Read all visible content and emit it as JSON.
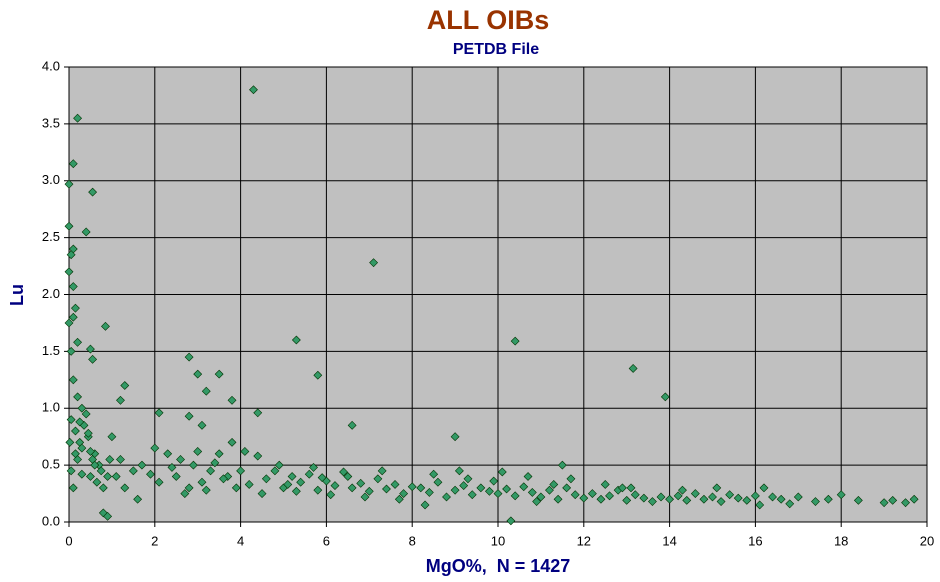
{
  "chart_data": {
    "type": "scatter",
    "title": "ALL OIBs",
    "subtitle": "PETDB File",
    "x_label": "MgO%,  N = 1427",
    "y_label": "Lu",
    "color": "#339966",
    "grid": true,
    "xlim": [
      0,
      20
    ],
    "ylim": [
      0,
      4
    ],
    "xticks": [
      0,
      2,
      4,
      6,
      8,
      10,
      12,
      14,
      16,
      18,
      20
    ],
    "yticks": [
      {
        "value": 0,
        "label": "0.0"
      },
      0.5,
      {
        "value": 1,
        "label": "1.0"
      },
      1.5,
      {
        "value": 2,
        "label": "2.0"
      },
      2.5,
      {
        "value": 3,
        "label": "3.0"
      },
      3.5,
      {
        "value": 4,
        "label": "4.0"
      }
    ],
    "x": [
      4.3,
      0.2,
      0.1,
      0,
      0.55,
      0,
      0.4,
      0.1,
      0.05,
      0,
      7.1,
      0.1,
      0.15,
      0.1,
      0,
      0.85,
      5.3,
      10.4,
      0.2,
      0.5,
      0.05,
      0.55,
      2.8,
      13.15,
      5.8,
      3.0,
      3.5,
      1.3,
      3.2,
      13.9,
      3.8,
      1.2,
      0.1,
      0.2,
      0.3,
      4.4,
      2.1,
      2.8,
      6.6,
      9.0,
      3.1,
      0.8,
      0.9,
      10.3,
      0.05,
      0.15,
      0.25,
      0.35,
      0.45,
      0.6,
      0.7,
      0.05,
      0.2,
      0.3,
      0.5,
      0.65,
      0.1,
      0.4,
      0.55,
      0.75,
      1.0,
      1.1,
      1.3,
      1.5,
      1.7,
      1.9,
      2.1,
      2.3,
      2.5,
      2.7,
      2.9,
      3.1,
      3.3,
      3.5,
      3.7,
      3.9,
      1.2,
      1.6,
      2.0,
      2.4,
      2.6,
      2.8,
      3.0,
      3.2,
      3.4,
      3.6,
      3.8,
      4.0,
      4.2,
      4.4,
      4.6,
      4.8,
      5.0,
      5.2,
      5.4,
      5.6,
      5.8,
      6.0,
      6.2,
      6.4,
      6.6,
      6.8,
      7.0,
      7.2,
      7.4,
      7.6,
      7.8,
      8.0,
      4.1,
      4.5,
      4.9,
      5.3,
      5.7,
      6.1,
      6.5,
      6.9,
      7.3,
      7.7,
      5.1,
      5.9,
      8.2,
      8.4,
      8.6,
      8.8,
      9.0,
      9.2,
      9.4,
      9.6,
      9.8,
      10.0,
      10.2,
      10.4,
      10.6,
      10.8,
      11.0,
      11.2,
      11.4,
      11.6,
      11.8,
      12.0,
      8.5,
      9.3,
      10.1,
      10.9,
      11.5,
      8.3,
      9.1,
      9.9,
      10.7,
      11.3,
      12.2,
      12.4,
      12.6,
      12.8,
      13.0,
      13.2,
      13.4,
      13.6,
      13.8,
      14.0,
      14.2,
      14.4,
      14.6,
      14.8,
      15.0,
      15.2,
      15.4,
      15.6,
      15.8,
      16.0,
      16.2,
      16.6,
      16.8,
      17.0,
      17.4,
      17.7,
      18.0,
      18.4,
      19.0,
      19.2,
      19.5,
      19.7,
      12.5,
      13.1,
      14.3,
      15.1,
      16.1,
      11.7,
      12.9,
      16.4,
      0.15,
      0.3,
      0.45,
      0.6,
      0.8,
      0.95,
      0.02,
      0.25,
      0.5,
      0.9
    ],
    "values": [
      3.8,
      3.55,
      3.15,
      2.97,
      2.9,
      2.6,
      2.55,
      2.4,
      2.35,
      2.2,
      2.28,
      2.07,
      1.88,
      1.8,
      1.75,
      1.72,
      1.6,
      1.59,
      1.58,
      1.52,
      1.5,
      1.43,
      1.45,
      1.35,
      1.29,
      1.3,
      1.3,
      1.2,
      1.15,
      1.1,
      1.07,
      1.07,
      1.25,
      1.1,
      1.0,
      0.96,
      0.96,
      0.93,
      0.85,
      0.75,
      0.85,
      0.08,
      0.05,
      0.01,
      0.9,
      0.8,
      0.7,
      0.85,
      0.75,
      0.6,
      0.5,
      0.45,
      0.55,
      0.65,
      0.4,
      0.35,
      0.3,
      0.95,
      0.55,
      0.45,
      0.75,
      0.4,
      0.3,
      0.45,
      0.5,
      0.42,
      0.35,
      0.6,
      0.4,
      0.25,
      0.5,
      0.35,
      0.45,
      0.6,
      0.4,
      0.3,
      0.55,
      0.2,
      0.65,
      0.48,
      0.55,
      0.3,
      0.62,
      0.28,
      0.52,
      0.38,
      0.7,
      0.45,
      0.33,
      0.58,
      0.38,
      0.45,
      0.3,
      0.4,
      0.35,
      0.42,
      0.28,
      0.36,
      0.32,
      0.44,
      0.3,
      0.34,
      0.27,
      0.38,
      0.29,
      0.33,
      0.25,
      0.31,
      0.62,
      0.25,
      0.5,
      0.27,
      0.48,
      0.24,
      0.4,
      0.22,
      0.45,
      0.2,
      0.33,
      0.39,
      0.3,
      0.26,
      0.35,
      0.22,
      0.28,
      0.32,
      0.24,
      0.3,
      0.27,
      0.25,
      0.29,
      0.23,
      0.31,
      0.26,
      0.22,
      0.28,
      0.2,
      0.3,
      0.24,
      0.21,
      0.42,
      0.38,
      0.44,
      0.18,
      0.5,
      0.15,
      0.45,
      0.36,
      0.4,
      0.33,
      0.25,
      0.2,
      0.23,
      0.28,
      0.19,
      0.24,
      0.21,
      0.18,
      0.22,
      0.2,
      0.23,
      0.19,
      0.25,
      0.2,
      0.22,
      0.18,
      0.24,
      0.21,
      0.19,
      0.23,
      0.3,
      0.2,
      0.16,
      0.22,
      0.18,
      0.2,
      0.24,
      0.19,
      0.17,
      0.19,
      0.17,
      0.2,
      0.33,
      0.3,
      0.28,
      0.3,
      0.15,
      0.38,
      0.3,
      0.22,
      0.6,
      0.42,
      0.78,
      0.5,
      0.3,
      0.55,
      0.7,
      0.88,
      0.62,
      0.4
    ]
  }
}
